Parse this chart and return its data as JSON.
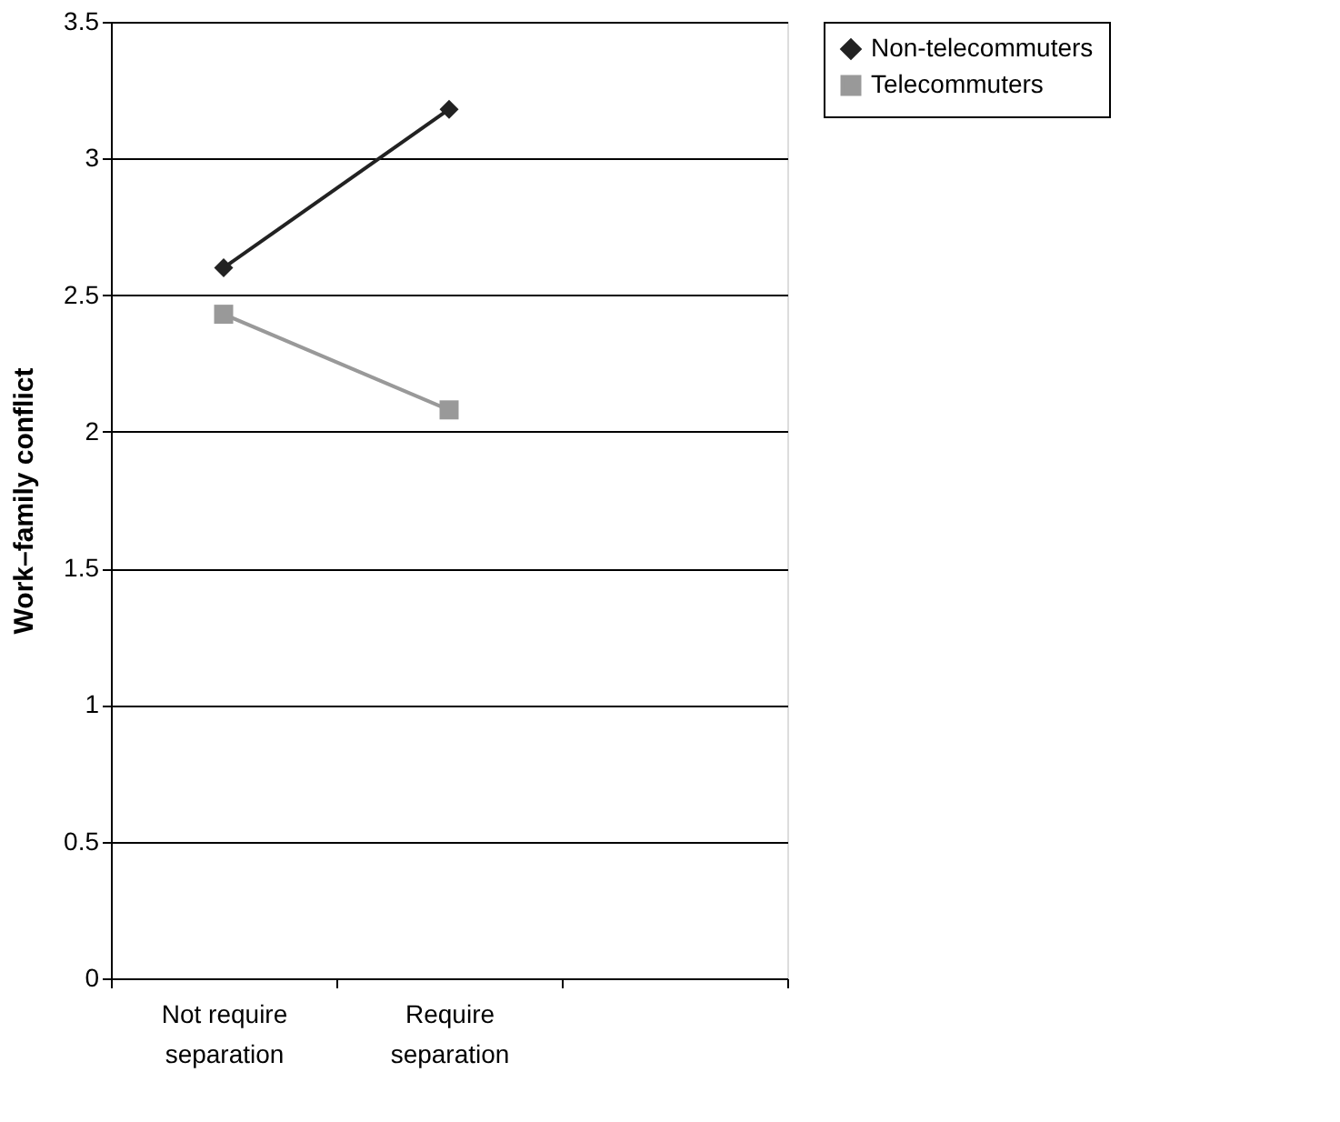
{
  "chart_data": {
    "type": "line",
    "ylabel": "Work–family conflict",
    "categories": [
      "Not require separation",
      "Require separation",
      null
    ],
    "series": [
      {
        "name": "Non-telecommuters",
        "color": "#222222",
        "marker": "diamond",
        "values": [
          2.6,
          3.18,
          null
        ]
      },
      {
        "name": "Telecommuters",
        "color": "#999999",
        "marker": "square",
        "values": [
          2.43,
          2.08,
          null
        ]
      }
    ],
    "ylim": [
      0,
      3.5
    ],
    "yticks": [
      0,
      0.5,
      1,
      1.5,
      2,
      2.5,
      3,
      3.5
    ],
    "grid": "y",
    "legend": "right",
    "line_style": "solid"
  }
}
